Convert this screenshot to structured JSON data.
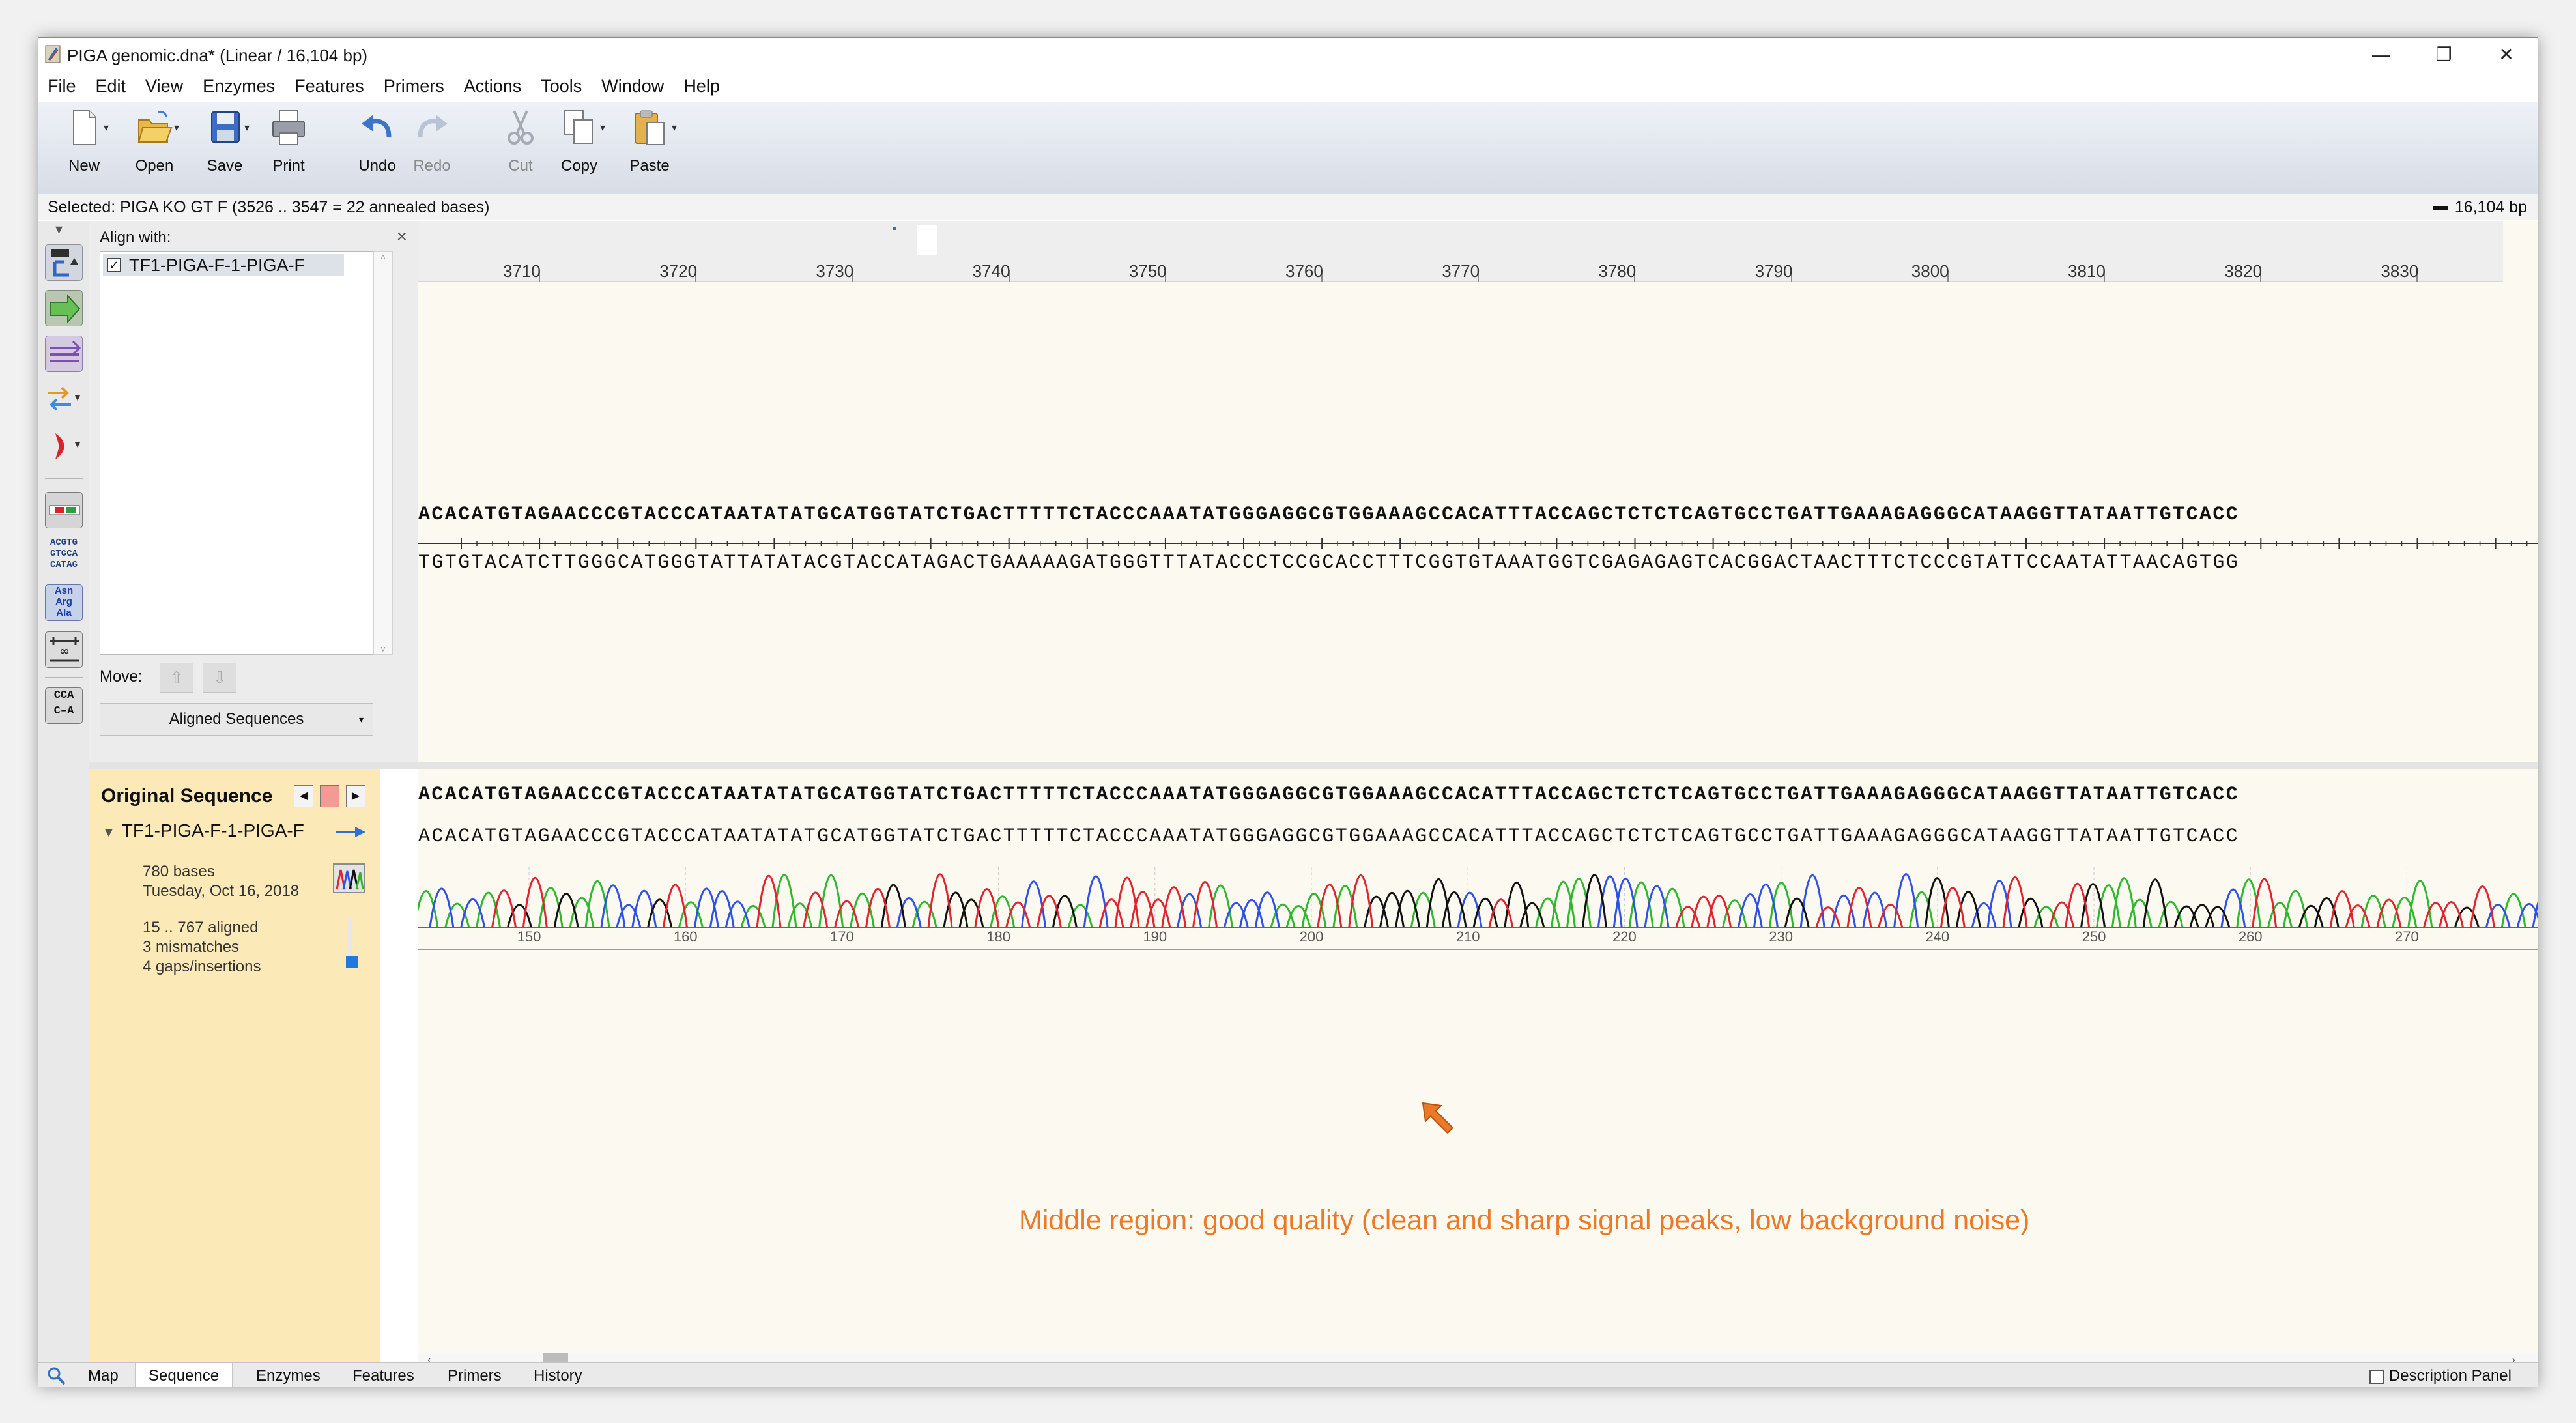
{
  "window": {
    "title": "PIGA genomic.dna*  (Linear / 16,104 bp)",
    "minimize_glyph": "—",
    "restore_glyph": "❐",
    "close_glyph": "✕"
  },
  "menu": [
    "File",
    "Edit",
    "View",
    "Enzymes",
    "Features",
    "Primers",
    "Actions",
    "Tools",
    "Window",
    "Help"
  ],
  "toolbar": {
    "new": "New",
    "open": "Open",
    "save": "Save",
    "print": "Print",
    "undo": "Undo",
    "redo": "Redo",
    "cut": "Cut",
    "copy": "Copy",
    "paste": "Paste"
  },
  "status": {
    "selected": "Selected:  PIGA KO GT F  (3526 .. 3547  =  22 annealed bases)",
    "length": "16,104 bp"
  },
  "left_tools": {
    "bases_tile": "ACGTG\nGTGCA\nCATAG",
    "aa_tile": "Asn\nArg\nAla",
    "cca_tile": "CCA\nC–A"
  },
  "align_panel": {
    "header": "Align with:",
    "close_glyph": "×",
    "item": "TF1-PIGA-F-1-PIGA-F",
    "move_label": "Move:",
    "aligned_button": "Aligned Sequences"
  },
  "ruler": {
    "ticks": [
      "3710",
      "3720",
      "3730",
      "3740",
      "3750",
      "3760",
      "3770",
      "3780",
      "3790",
      "3800",
      "3810",
      "3820",
      "3830"
    ]
  },
  "sequence": {
    "top_strand": "ACACATGTAGAACCCGTACCCATAATATATGCATGGTATCTGACTTTTTCTACCCAAATATGGGAGGCGTGGAAAGCCACATTTACCAGCTCTCTCAGTGCCTGATTGAAAGAGGGCATAAGGTTATAATTGTCACC",
    "bottom_strand": "TGTGTACATCTTGGGCATGGGTATTATATACGTACCATAGACTGAAAAAGATGGGTTTATACCCTCCGCACCTTTCGGTGTAAATGGTCGAGAGAGTCACGGACTAACTTTCTCCCGTATTCCAATATTAACAGTGG"
  },
  "original_panel": {
    "title": "Original Sequence",
    "prev_glyph": "◀",
    "next_glyph": "▶",
    "read_name": "TF1-PIGA-F-1-PIGA-F",
    "bases": "780 bases",
    "date": "Tuesday, Oct 16, 2018",
    "aligned": "15 .. 767 aligned",
    "mismatches": "3 mismatches",
    "gaps": "4 gaps/insertions"
  },
  "chromatogram": {
    "reference": "ACACATGTAGAACCCGTACCCATAATATATGCATGGTATCTGACTTTTTCTACCCAAATATGGGAGGCGTGGAAAGCCACATTTACCAGCTCTCTCAGTGCCTGATTGAAAGAGGGCATAAGGTTATAATTGTCACC",
    "read": "ACACATGTAGAACCCGTACCCATAATATATGCATGGTATCTGACTTTTTCTACCCAAATATGGGAGGCGTGGAAAGCCACATTTACCAGCTCTCTCAGTGCCTGATTGAAAGAGGGCATAAGGTTATAATTGTCACC",
    "ticks": [
      "150",
      "160",
      "170",
      "180",
      "190",
      "200",
      "210",
      "220",
      "230",
      "240",
      "250",
      "260",
      "270"
    ],
    "colors": {
      "A": "#2db82d",
      "C": "#2f50e6",
      "G": "#111111",
      "T": "#e0232f"
    },
    "annotation": "Middle region: good quality (clean and sharp signal peaks, low background noise)"
  },
  "bottom_tabs": [
    "Map",
    "Sequence",
    "Enzymes",
    "Features",
    "Primers",
    "History"
  ],
  "active_tab": "Sequence",
  "description_panel": "Description Panel"
}
